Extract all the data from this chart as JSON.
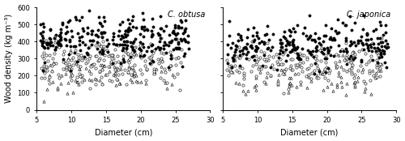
{
  "title_left": "C. obtusa",
  "title_right": "C. japonica",
  "xlabel": "Diameter (cm)",
  "ylabel": "Wood density (kg m⁻³)",
  "xlim": [
    5,
    30
  ],
  "ylim": [
    0,
    600
  ],
  "xticks": [
    5,
    10,
    15,
    20,
    25,
    30
  ],
  "yticks": [
    0,
    100,
    200,
    300,
    400,
    500,
    600
  ],
  "figsize": [
    5.0,
    1.74
  ],
  "dpi": 100,
  "marker_size": 5.5,
  "lw": 0.4,
  "title_fontsize": 7,
  "label_fontsize": 7,
  "tick_fontsize": 6
}
